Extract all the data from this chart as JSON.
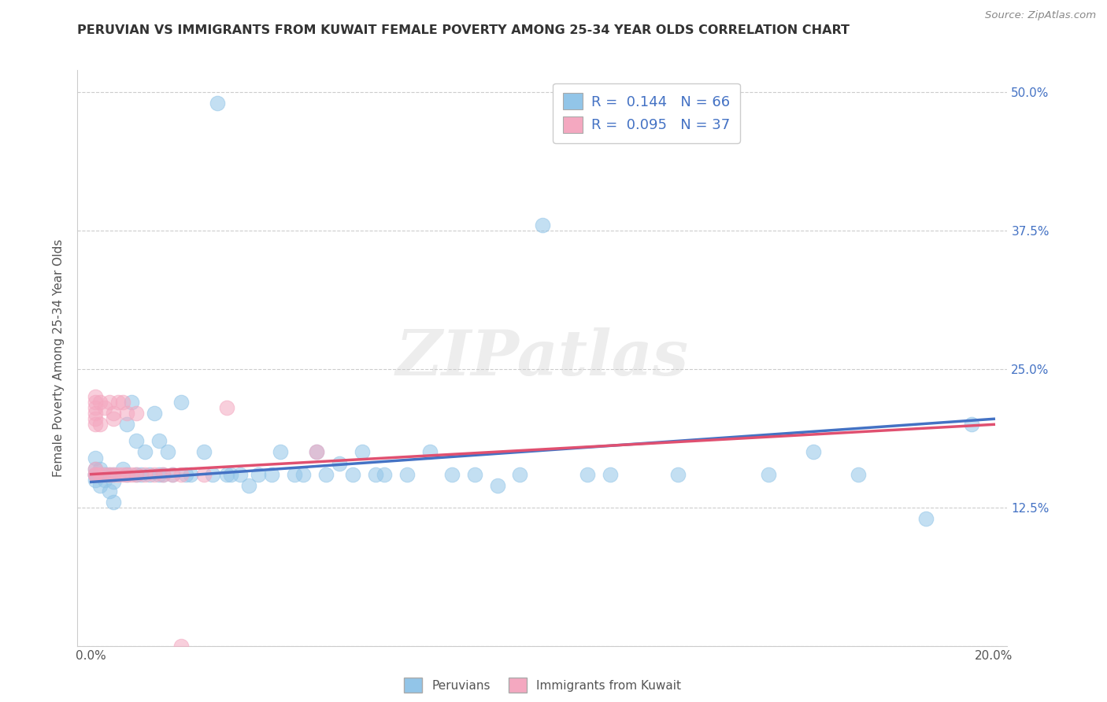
{
  "title": "PERUVIAN VS IMMIGRANTS FROM KUWAIT FEMALE POVERTY AMONG 25-34 YEAR OLDS CORRELATION CHART",
  "source": "Source: ZipAtlas.com",
  "ylabel": "Female Poverty Among 25-34 Year Olds",
  "watermark": "ZIPatlas",
  "R_peru": 0.144,
  "N_peru": 66,
  "R_kuwait": 0.095,
  "N_kuwait": 37,
  "legend_label1": "Peruvians",
  "legend_label2": "Immigrants from Kuwait",
  "color_peru": "#92C5E8",
  "color_kuwait": "#F4A8C0",
  "line_color_peru": "#4472C4",
  "line_color_kuwait": "#E05070",
  "peru_x": [
    0.001,
    0.001,
    0.001,
    0.001,
    0.001,
    0.002,
    0.002,
    0.003,
    0.003,
    0.004,
    0.004,
    0.005,
    0.005,
    0.005,
    0.007,
    0.008,
    0.008,
    0.009,
    0.01,
    0.01,
    0.011,
    0.012,
    0.013,
    0.014,
    0.015,
    0.015,
    0.016,
    0.017,
    0.018,
    0.02,
    0.021,
    0.022,
    0.025,
    0.027,
    0.028,
    0.03,
    0.031,
    0.033,
    0.035,
    0.037,
    0.04,
    0.042,
    0.045,
    0.047,
    0.05,
    0.052,
    0.055,
    0.058,
    0.06,
    0.063,
    0.065,
    0.07,
    0.075,
    0.08,
    0.085,
    0.09,
    0.095,
    0.1,
    0.11,
    0.115,
    0.13,
    0.15,
    0.16,
    0.17,
    0.185,
    0.195
  ],
  "peru_y": [
    0.15,
    0.155,
    0.16,
    0.17,
    0.155,
    0.145,
    0.16,
    0.15,
    0.155,
    0.14,
    0.155,
    0.13,
    0.148,
    0.155,
    0.16,
    0.155,
    0.2,
    0.22,
    0.155,
    0.185,
    0.155,
    0.175,
    0.155,
    0.21,
    0.155,
    0.185,
    0.155,
    0.175,
    0.155,
    0.22,
    0.155,
    0.155,
    0.175,
    0.155,
    0.49,
    0.155,
    0.155,
    0.155,
    0.145,
    0.155,
    0.155,
    0.175,
    0.155,
    0.155,
    0.175,
    0.155,
    0.165,
    0.155,
    0.175,
    0.155,
    0.155,
    0.155,
    0.175,
    0.155,
    0.155,
    0.145,
    0.155,
    0.38,
    0.155,
    0.155,
    0.155,
    0.155,
    0.175,
    0.155,
    0.115,
    0.2
  ],
  "kuwait_x": [
    0.001,
    0.001,
    0.001,
    0.001,
    0.001,
    0.001,
    0.001,
    0.001,
    0.001,
    0.002,
    0.002,
    0.002,
    0.003,
    0.003,
    0.004,
    0.004,
    0.005,
    0.005,
    0.005,
    0.006,
    0.006,
    0.007,
    0.007,
    0.008,
    0.008,
    0.009,
    0.01,
    0.01,
    0.012,
    0.014,
    0.016,
    0.018,
    0.02,
    0.025,
    0.03,
    0.05,
    0.02
  ],
  "kuwait_y": [
    0.2,
    0.205,
    0.21,
    0.215,
    0.22,
    0.225,
    0.155,
    0.155,
    0.16,
    0.155,
    0.2,
    0.22,
    0.155,
    0.215,
    0.155,
    0.22,
    0.155,
    0.205,
    0.21,
    0.155,
    0.22,
    0.155,
    0.22,
    0.155,
    0.21,
    0.155,
    0.155,
    0.21,
    0.155,
    0.155,
    0.155,
    0.155,
    0.155,
    0.155,
    0.215,
    0.175,
    0.0
  ],
  "xlim": [
    -0.003,
    0.203
  ],
  "ylim": [
    0.0,
    0.52
  ],
  "line_x_start": 0.0,
  "line_x_end": 0.2,
  "peru_line_y_start": 0.148,
  "peru_line_y_end": 0.205,
  "kuwait_line_y_start": 0.155,
  "kuwait_line_y_end": 0.2
}
